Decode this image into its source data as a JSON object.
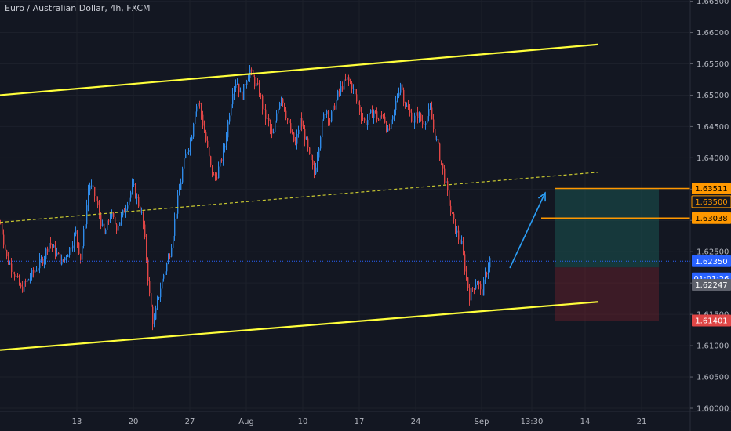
{
  "chart_data": {
    "type": "candlestick",
    "title": "Euro / Australian Dollar, 4h, FXCM",
    "y_axis": {
      "range": [
        1.5995,
        1.6652
      ],
      "ticks": [
        "1.66500",
        "1.66000",
        "1.65500",
        "1.65000",
        "1.64500",
        "1.64000",
        "1.63500",
        "1.63000",
        "1.62500",
        "1.62000",
        "1.61500",
        "1.61000",
        "1.60500",
        "1.60000"
      ],
      "tick_values": [
        1.665,
        1.66,
        1.655,
        1.65,
        1.645,
        1.64,
        1.635,
        1.63,
        1.625,
        1.62,
        1.615,
        1.61,
        1.605,
        1.6
      ]
    },
    "x_axis": {
      "ticks": [
        "13",
        "20",
        "27",
        "Aug",
        "10",
        "17",
        "24",
        "Sep",
        "13:30",
        "14",
        "21"
      ],
      "tick_bar_index": [
        98,
        170,
        242,
        314,
        386,
        458,
        530,
        614,
        678,
        746,
        818
      ],
      "bar_count_visible": 932
    },
    "colors": {
      "up": "#2f8ae8",
      "down": "#e04646",
      "background": "#131722",
      "channel": "#ffff3b",
      "midline": "#c9c930",
      "arrow": "#2b9df4",
      "target": "#ff9800",
      "stop": "#e04646"
    },
    "price_path": [
      {
        "x": 0,
        "p": 1.6295
      },
      {
        "x": 8,
        "p": 1.624
      },
      {
        "x": 18,
        "p": 1.6215
      },
      {
        "x": 26,
        "p": 1.619
      },
      {
        "x": 35,
        "p": 1.6205
      },
      {
        "x": 45,
        "p": 1.6222
      },
      {
        "x": 55,
        "p": 1.624
      },
      {
        "x": 62,
        "p": 1.6265
      },
      {
        "x": 70,
        "p": 1.625
      },
      {
        "x": 78,
        "p": 1.6232
      },
      {
        "x": 88,
        "p": 1.6255
      },
      {
        "x": 96,
        "p": 1.628
      },
      {
        "x": 102,
        "p": 1.624
      },
      {
        "x": 108,
        "p": 1.63
      },
      {
        "x": 113,
        "p": 1.636
      },
      {
        "x": 120,
        "p": 1.634
      },
      {
        "x": 126,
        "p": 1.631
      },
      {
        "x": 132,
        "p": 1.6275
      },
      {
        "x": 140,
        "p": 1.631
      },
      {
        "x": 148,
        "p": 1.629
      },
      {
        "x": 156,
        "p": 1.631
      },
      {
        "x": 163,
        "p": 1.6335
      },
      {
        "x": 169,
        "p": 1.6355
      },
      {
        "x": 175,
        "p": 1.633
      },
      {
        "x": 181,
        "p": 1.6305
      },
      {
        "x": 186,
        "p": 1.624
      },
      {
        "x": 190,
        "p": 1.618
      },
      {
        "x": 195,
        "p": 1.613
      },
      {
        "x": 200,
        "p": 1.617
      },
      {
        "x": 206,
        "p": 1.6205
      },
      {
        "x": 212,
        "p": 1.623
      },
      {
        "x": 217,
        "p": 1.6255
      },
      {
        "x": 222,
        "p": 1.63
      },
      {
        "x": 227,
        "p": 1.634
      },
      {
        "x": 232,
        "p": 1.638
      },
      {
        "x": 237,
        "p": 1.641
      },
      {
        "x": 243,
        "p": 1.643
      },
      {
        "x": 248,
        "p": 1.648
      },
      {
        "x": 253,
        "p": 1.649
      },
      {
        "x": 258,
        "p": 1.6455
      },
      {
        "x": 263,
        "p": 1.642
      },
      {
        "x": 268,
        "p": 1.6385
      },
      {
        "x": 273,
        "p": 1.6365
      },
      {
        "x": 280,
        "p": 1.639
      },
      {
        "x": 286,
        "p": 1.642
      },
      {
        "x": 291,
        "p": 1.6465
      },
      {
        "x": 296,
        "p": 1.651
      },
      {
        "x": 301,
        "p": 1.6525
      },
      {
        "x": 307,
        "p": 1.6495
      },
      {
        "x": 313,
        "p": 1.6525
      },
      {
        "x": 318,
        "p": 1.654
      },
      {
        "x": 324,
        "p": 1.652
      },
      {
        "x": 330,
        "p": 1.6505
      },
      {
        "x": 336,
        "p": 1.647
      },
      {
        "x": 342,
        "p": 1.6455
      },
      {
        "x": 347,
        "p": 1.643
      },
      {
        "x": 353,
        "p": 1.648
      },
      {
        "x": 358,
        "p": 1.65
      },
      {
        "x": 364,
        "p": 1.647
      },
      {
        "x": 370,
        "p": 1.644
      },
      {
        "x": 376,
        "p": 1.642
      },
      {
        "x": 382,
        "p": 1.646
      },
      {
        "x": 388,
        "p": 1.6435
      },
      {
        "x": 394,
        "p": 1.64
      },
      {
        "x": 400,
        "p": 1.6375
      },
      {
        "x": 405,
        "p": 1.6415
      },
      {
        "x": 410,
        "p": 1.6455
      },
      {
        "x": 415,
        "p": 1.648
      },
      {
        "x": 420,
        "p": 1.646
      },
      {
        "x": 425,
        "p": 1.648
      },
      {
        "x": 430,
        "p": 1.65
      },
      {
        "x": 436,
        "p": 1.6515
      },
      {
        "x": 442,
        "p": 1.6525
      },
      {
        "x": 448,
        "p": 1.6515
      },
      {
        "x": 454,
        "p": 1.649
      },
      {
        "x": 460,
        "p": 1.647
      },
      {
        "x": 465,
        "p": 1.6455
      },
      {
        "x": 470,
        "p": 1.6465
      },
      {
        "x": 476,
        "p": 1.6475
      },
      {
        "x": 482,
        "p": 1.646
      },
      {
        "x": 488,
        "p": 1.647
      },
      {
        "x": 494,
        "p": 1.644
      },
      {
        "x": 500,
        "p": 1.646
      },
      {
        "x": 505,
        "p": 1.6495
      },
      {
        "x": 510,
        "p": 1.652
      },
      {
        "x": 515,
        "p": 1.649
      },
      {
        "x": 520,
        "p": 1.6475
      },
      {
        "x": 526,
        "p": 1.646
      },
      {
        "x": 532,
        "p": 1.647
      },
      {
        "x": 538,
        "p": 1.6455
      },
      {
        "x": 543,
        "p": 1.6465
      },
      {
        "x": 548,
        "p": 1.6475
      },
      {
        "x": 553,
        "p": 1.644
      },
      {
        "x": 558,
        "p": 1.6415
      },
      {
        "x": 563,
        "p": 1.6385
      },
      {
        "x": 568,
        "p": 1.6355
      },
      {
        "x": 573,
        "p": 1.632
      },
      {
        "x": 578,
        "p": 1.6295
      },
      {
        "x": 583,
        "p": 1.6275
      },
      {
        "x": 588,
        "p": 1.626
      },
      {
        "x": 593,
        "p": 1.6215
      },
      {
        "x": 598,
        "p": 1.618
      },
      {
        "x": 603,
        "p": 1.6195
      },
      {
        "x": 608,
        "p": 1.6205
      },
      {
        "x": 613,
        "p": 1.618
      },
      {
        "x": 618,
        "p": 1.621
      },
      {
        "x": 624,
        "p": 1.6238
      }
    ],
    "annotations": {
      "channel_upper": {
        "x1": 0,
        "p1": 1.65,
        "x2": 763,
        "p2": 1.6581
      },
      "channel_lower": {
        "x1": 0,
        "p1": 1.6093,
        "x2": 763,
        "p2": 1.617
      },
      "channel_mid_dashed": {
        "x1": 0,
        "p1": 1.6297,
        "x2": 763,
        "p2": 1.6377
      },
      "current_price_line": {
        "p": 1.6235
      },
      "arrow": {
        "x1": 650,
        "p1": 1.6224,
        "x2": 695,
        "p2": 1.6344
      },
      "take_profit_line": {
        "x1": 708,
        "x2": 880,
        "p": 1.63511
      },
      "entry_line": {
        "x1": 690,
        "x2": 880,
        "p": 1.63038
      },
      "reward_box": {
        "x1": 708,
        "x2": 840,
        "p_top": 1.63511,
        "p_bottom": 1.6225
      },
      "risk_box": {
        "x1": 708,
        "x2": 840,
        "p_top": 1.6225,
        "p_bottom": 1.61401
      }
    },
    "price_tags": [
      {
        "text": "1.63511",
        "p": 1.63511,
        "bg": "#ff9800",
        "fg": "#000000"
      },
      {
        "text": "1.63500",
        "p": 1.635,
        "bg": "#131722",
        "fg": "#ff9800",
        "border": "#ff9800",
        "offset": 16
      },
      {
        "text": "1.63038",
        "p": 1.63038,
        "bg": "#ff9800",
        "fg": "#000000"
      },
      {
        "text": "1.62350",
        "p": 1.6235,
        "bg": "#2962ff",
        "fg": "#ffffff"
      },
      {
        "text": "01:01:26",
        "p": 1.6235,
        "bg": "#2962ff",
        "fg": "#ffffff",
        "offset": 22
      },
      {
        "text": "1.62247",
        "p": 1.62247,
        "bg": "#5d606b",
        "fg": "#ffffff",
        "offset": 22
      },
      {
        "text": "1.61401",
        "p": 1.61401,
        "bg": "#e04646",
        "fg": "#ffffff"
      }
    ]
  }
}
